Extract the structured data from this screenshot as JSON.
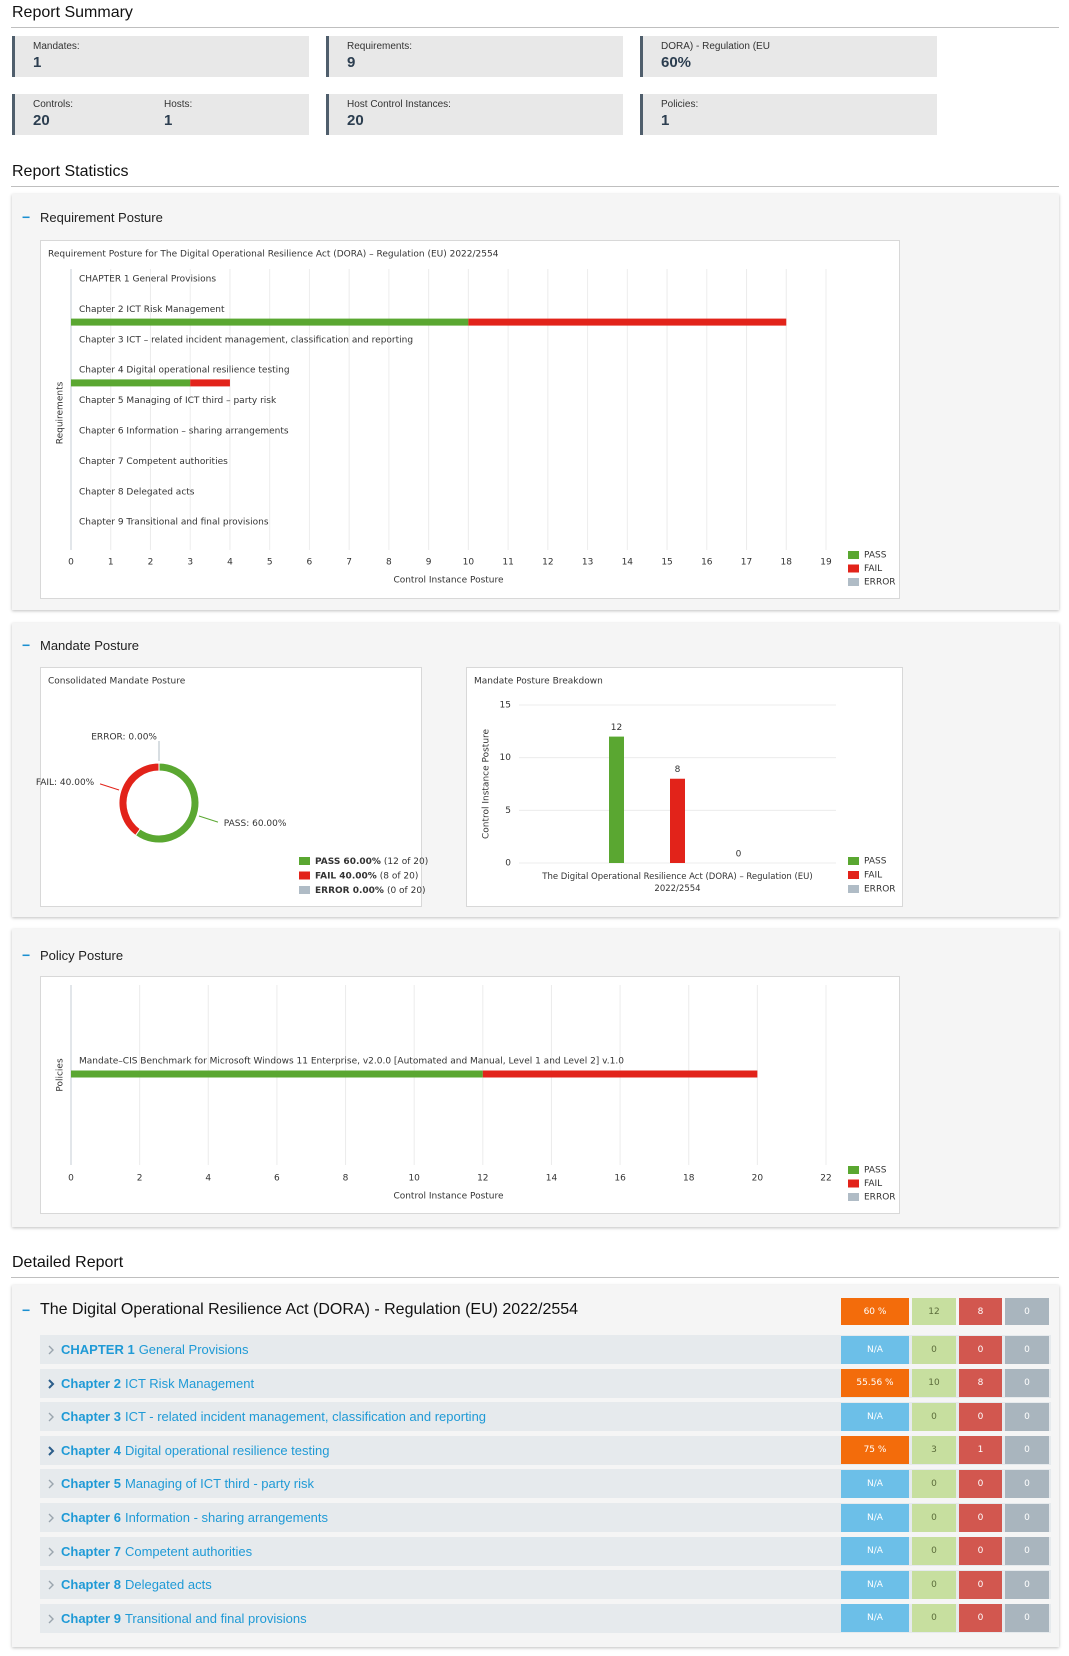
{
  "summary": {
    "title": "Report Summary",
    "cards": [
      [
        {
          "label": "Mandates:",
          "value": 1
        }
      ],
      [
        {
          "label": "Requirements:",
          "value": 9
        }
      ],
      [
        {
          "label": "DORA) - Regulation (EU",
          "value": "60%"
        }
      ],
      [
        {
          "label": "Controls:",
          "value": 20
        },
        {
          "label": "Hosts:",
          "value": 1
        }
      ],
      [
        {
          "label": "Host Control Instances:",
          "value": 20
        }
      ],
      [
        {
          "label": "Policies:",
          "value": 1
        }
      ]
    ]
  },
  "statistics_title": "Report Statistics",
  "sections": [
    "Requirement Posture",
    "Mandate Posture",
    "Policy Posture"
  ],
  "chart_data": [
    {
      "type": "bar",
      "horizontal": true,
      "stacked": true,
      "title": "Requirement Posture for The Digital Operational Resilience Act (DORA) – Regulation (EU) 2022/2554",
      "categories": [
        "CHAPTER 1 General Provisions",
        "Chapter 2 ICT Risk Management",
        "Chapter 3 ICT – related incident management, classification and reporting",
        "Chapter 4 Digital operational resilience testing",
        "Chapter 5 Managing of ICT third – party risk",
        "Chapter 6 Information – sharing arrangements",
        "Chapter 7 Competent authorities",
        "Chapter 8 Delegated acts",
        "Chapter 9 Transitional and final provisions"
      ],
      "series": [
        {
          "name": "PASS",
          "color": "#5aa731",
          "values": [
            0,
            10,
            0,
            3,
            0,
            0,
            0,
            0,
            0
          ]
        },
        {
          "name": "FAIL",
          "color": "#e2231a",
          "values": [
            0,
            8,
            0,
            1,
            0,
            0,
            0,
            0,
            0
          ]
        },
        {
          "name": "ERROR",
          "color": "#b0bcc6",
          "values": [
            0,
            0,
            0,
            0,
            0,
            0,
            0,
            0,
            0
          ]
        }
      ],
      "xlim": [
        0,
        19
      ],
      "xticks": [
        0,
        1,
        2,
        3,
        4,
        5,
        6,
        7,
        8,
        9,
        10,
        11,
        12,
        13,
        14,
        15,
        16,
        17,
        18,
        19
      ],
      "xlabel": "Control Instance Posture",
      "ylabel": "Requirements",
      "grid": true,
      "legend": "bottom-right"
    },
    {
      "type": "pie",
      "donut": true,
      "title": "Consolidated Mandate Posture",
      "values": [
        60,
        40,
        0
      ],
      "value_labels": [
        "PASS: 60.00%",
        "FAIL: 40.00%",
        "ERROR: 0.00%"
      ],
      "legend_labels": [
        "PASS 60.00%",
        "FAIL 40.00%",
        "ERROR 0.00%"
      ],
      "legend_notes": [
        "(12 of 20)",
        "(8 of 20)",
        "(0 of 20)"
      ],
      "colors": [
        "#5aa731",
        "#e2231a",
        "#b0bcc6"
      ],
      "legend": "bottom-right"
    },
    {
      "type": "bar",
      "horizontal": false,
      "stacked": false,
      "title": "Mandate Posture Breakdown",
      "categories": [
        "The Digital Operational Resilience Act (DORA) – Regulation (EU) 2022/2554"
      ],
      "series": [
        {
          "name": "PASS",
          "color": "#5aa731",
          "values": [
            12
          ]
        },
        {
          "name": "FAIL",
          "color": "#e2231a",
          "values": [
            8
          ]
        },
        {
          "name": "ERROR",
          "color": "#b0bcc6",
          "values": [
            0
          ]
        }
      ],
      "ylim": [
        0,
        15
      ],
      "yticks": [
        0,
        5,
        10,
        15
      ],
      "ylabel": "Control Instance Posture",
      "data_labels": true,
      "grid": true,
      "legend": "bottom-right"
    },
    {
      "type": "bar",
      "horizontal": true,
      "stacked": true,
      "categories": [
        "Mandate–CIS Benchmark for Microsoft Windows 11 Enterprise, v2.0.0 [Automated and Manual, Level 1 and Level 2] v.1.0"
      ],
      "series": [
        {
          "name": "PASS",
          "color": "#5aa731",
          "values": [
            12
          ]
        },
        {
          "name": "FAIL",
          "color": "#e2231a",
          "values": [
            8
          ]
        },
        {
          "name": "ERROR",
          "color": "#b0bcc6",
          "values": [
            0
          ]
        }
      ],
      "xlim": [
        0,
        22
      ],
      "xticks": [
        0,
        2,
        4,
        6,
        8,
        10,
        12,
        14,
        16,
        18,
        20,
        22
      ],
      "xlabel": "Control Instance Posture",
      "ylabel": "Policies",
      "grid": true,
      "legend": "bottom-right"
    }
  ],
  "detailed": {
    "title": "Detailed Report",
    "mandate": {
      "name": "The Digital Operational Resilience Act (DORA) - Regulation (EU) 2022/2554",
      "score": "60 %",
      "score_color": "#f36c0b",
      "pass": 12,
      "fail": 8,
      "error": 0
    },
    "rows": [
      {
        "prefix": "CHAPTER 1",
        "name": "General Provisions",
        "score": "N/A",
        "score_color": "#6cbfe8",
        "pass": 0,
        "fail": 0,
        "error": 0
      },
      {
        "prefix": "Chapter 2",
        "name": "ICT Risk Management",
        "score": "55.56 %",
        "score_color": "#f36c0b",
        "pass": 10,
        "fail": 8,
        "error": 0
      },
      {
        "prefix": "Chapter 3",
        "name": "ICT - related incident management, classification and reporting",
        "score": "N/A",
        "score_color": "#6cbfe8",
        "pass": 0,
        "fail": 0,
        "error": 0
      },
      {
        "prefix": "Chapter 4",
        "name": "Digital operational resilience testing",
        "score": "75 %",
        "score_color": "#f36c0b",
        "pass": 3,
        "fail": 1,
        "error": 0
      },
      {
        "prefix": "Chapter 5",
        "name": "Managing of ICT third - party risk",
        "score": "N/A",
        "score_color": "#6cbfe8",
        "pass": 0,
        "fail": 0,
        "error": 0
      },
      {
        "prefix": "Chapter 6",
        "name": "Information - sharing arrangements",
        "score": "N/A",
        "score_color": "#6cbfe8",
        "pass": 0,
        "fail": 0,
        "error": 0
      },
      {
        "prefix": "Chapter 7",
        "name": "Competent authorities",
        "score": "N/A",
        "score_color": "#6cbfe8",
        "pass": 0,
        "fail": 0,
        "error": 0
      },
      {
        "prefix": "Chapter 8",
        "name": "Delegated acts",
        "score": "N/A",
        "score_color": "#6cbfe8",
        "pass": 0,
        "fail": 0,
        "error": 0
      },
      {
        "prefix": "Chapter 9",
        "name": "Transitional and final provisions",
        "score": "N/A",
        "score_color": "#6cbfe8",
        "pass": 0,
        "fail": 0,
        "error": 0
      }
    ]
  }
}
